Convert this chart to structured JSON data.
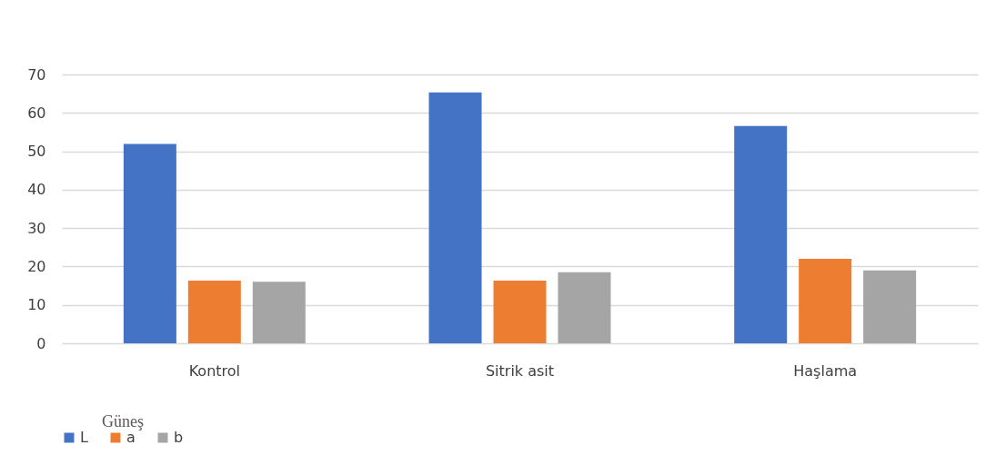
{
  "chart_data": {
    "type": "bar",
    "categories": [
      "Kontrol",
      "Sitrik asit",
      "Haşlama"
    ],
    "series": [
      {
        "name": "L",
        "color": "#4472c4",
        "values": [
          51.9,
          65.3,
          56.6
        ]
      },
      {
        "name": "a",
        "color": "#ed7d31",
        "values": [
          16.3,
          16.3,
          22.0
        ]
      },
      {
        "name": "b",
        "color": "#a5a5a5",
        "values": [
          16.0,
          18.5,
          19.0
        ]
      }
    ],
    "ylim": [
      0,
      70
    ],
    "yticks": [
      0,
      10,
      20,
      30,
      40,
      50,
      60,
      70
    ],
    "grid": "y",
    "legend": "bottom",
    "legend_title": "Güneş"
  }
}
